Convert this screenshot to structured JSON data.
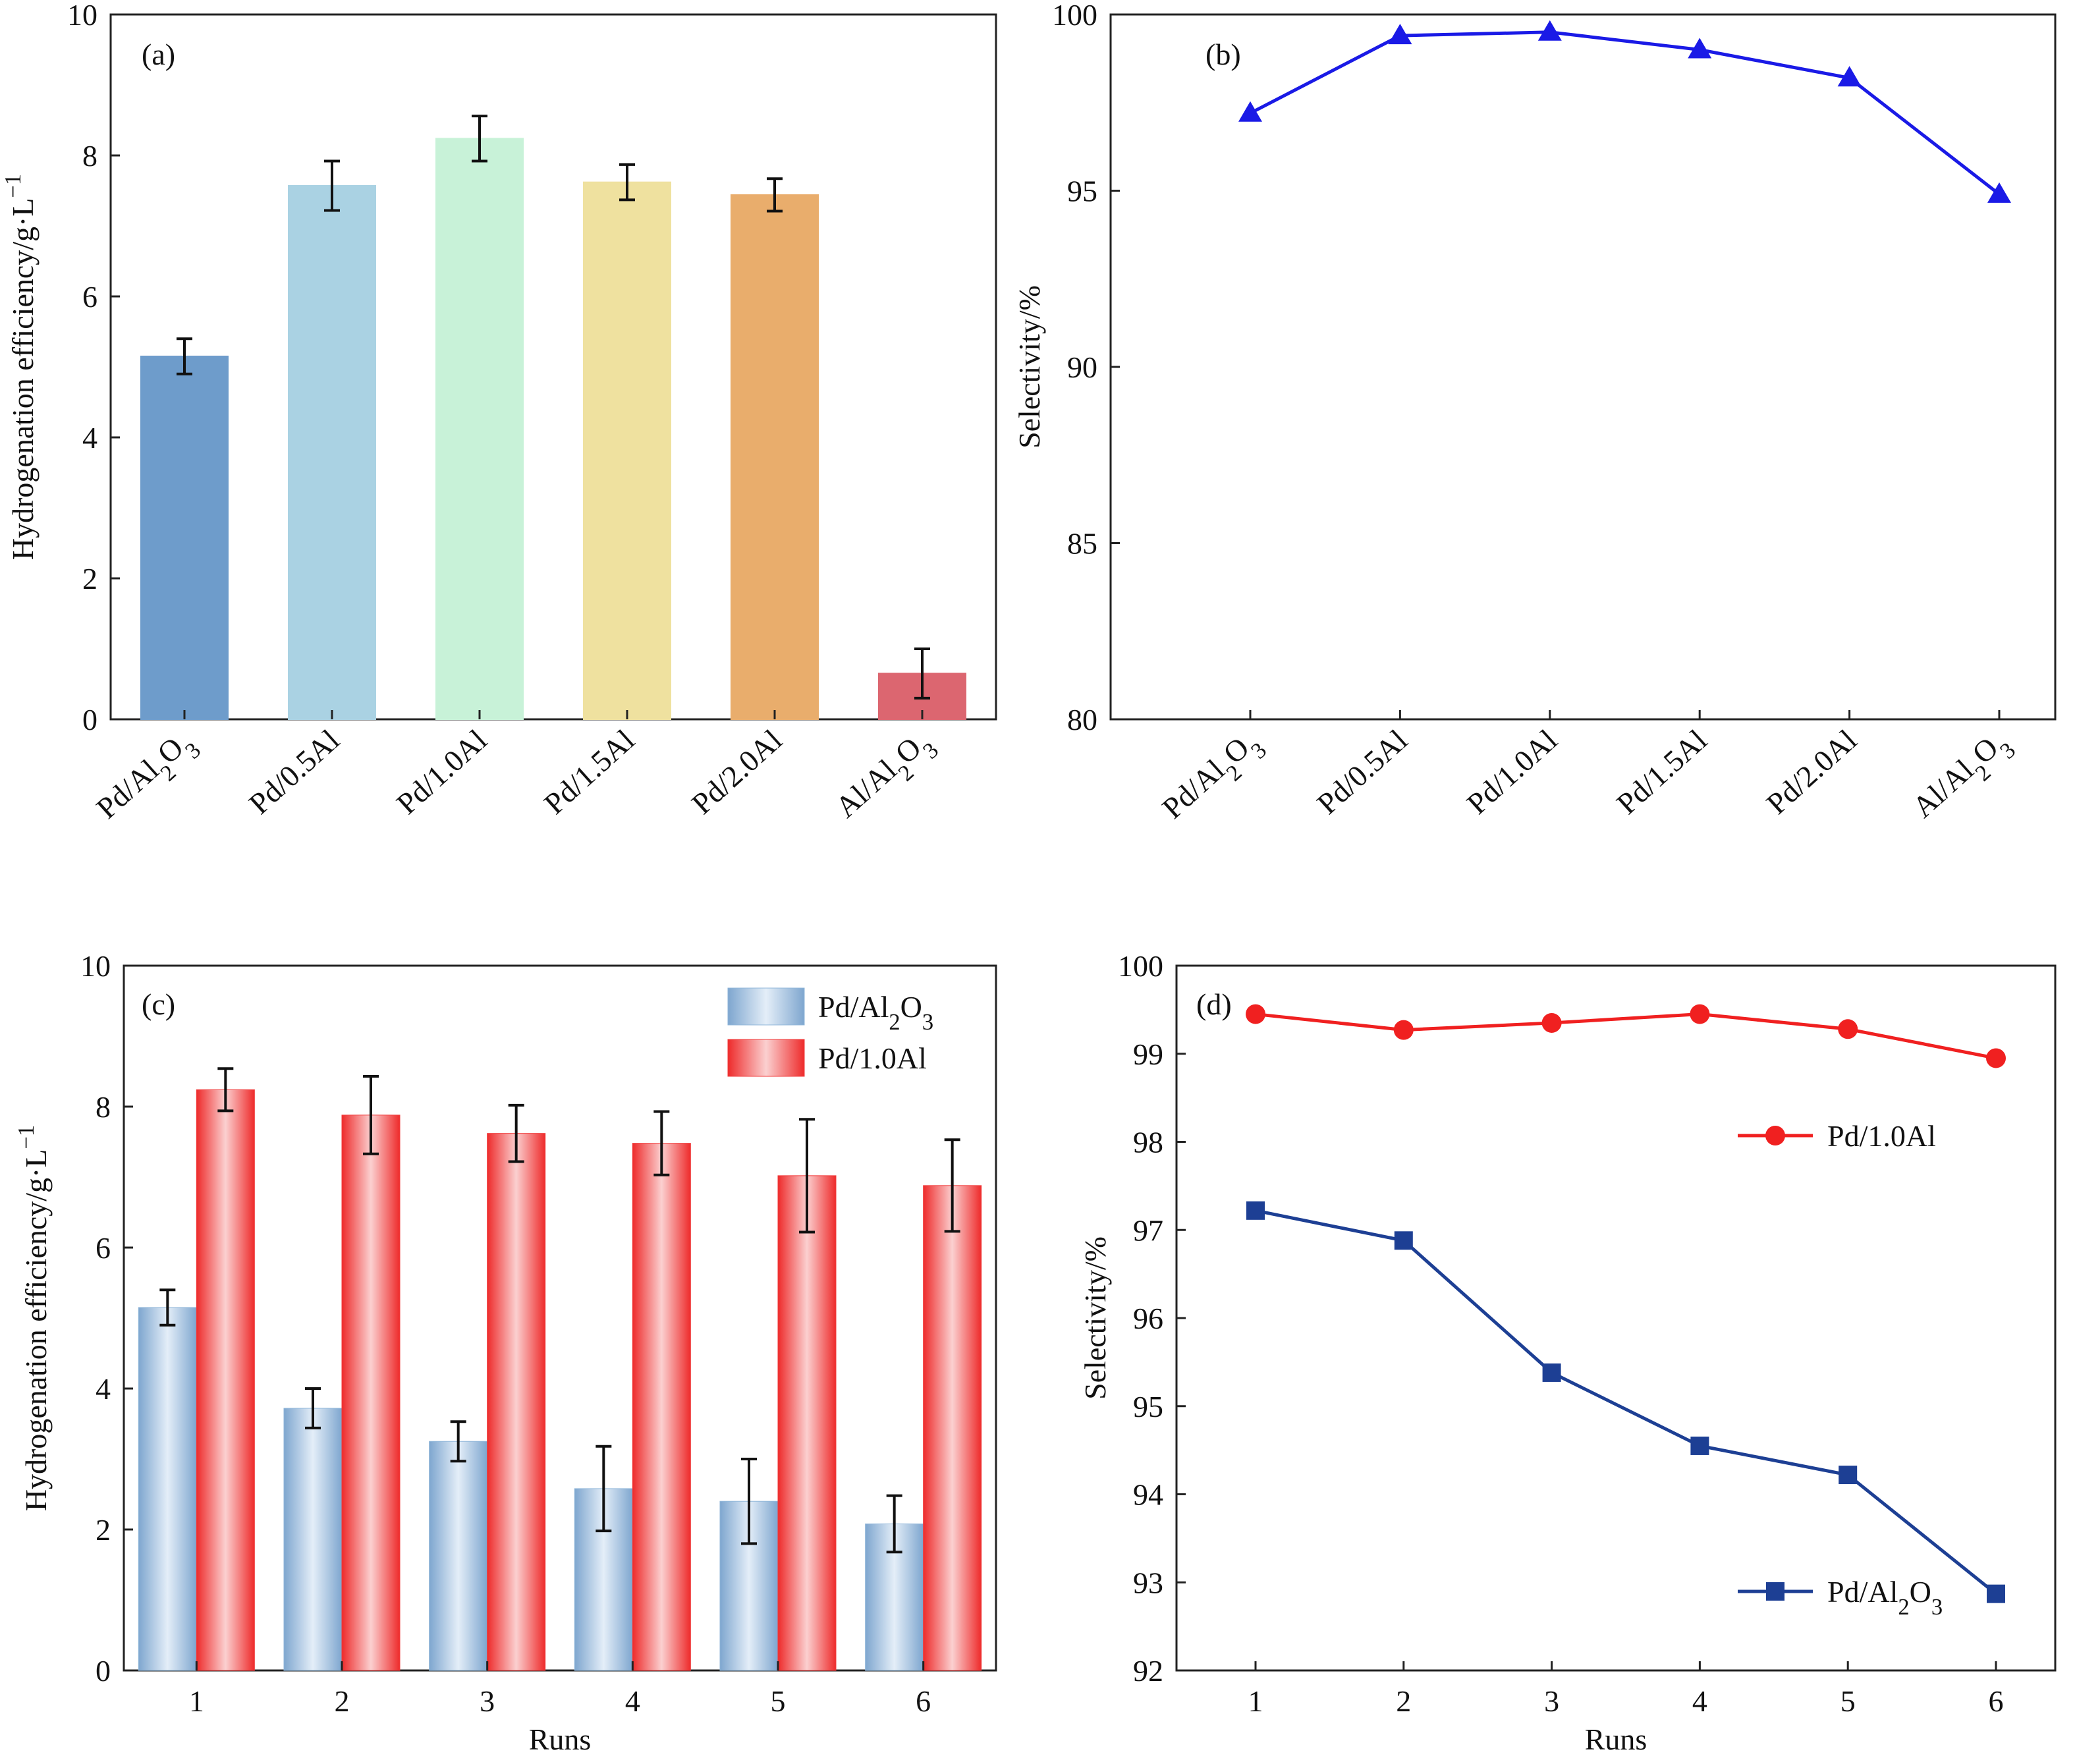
{
  "chart_data": [
    {
      "id": "a",
      "type": "bar",
      "panel_label": "(a)",
      "ylabel": "Hydrogenation efficiency/g·L",
      "ylabel_sup": "−1",
      "xlabel": "",
      "ylim": [
        0,
        10
      ],
      "yticks": [
        0,
        2,
        4,
        6,
        8,
        10
      ],
      "categories": [
        {
          "base": "Pd/Al",
          "sub1": "2",
          "mid": "O",
          "sub2": "3"
        },
        {
          "base": "Pd/0.5Al"
        },
        {
          "base": "Pd/1.0Al"
        },
        {
          "base": "Pd/1.5Al"
        },
        {
          "base": "Pd/2.0Al"
        },
        {
          "base": "Al/Al",
          "sub1": "2",
          "mid": "O",
          "sub2": "3"
        }
      ],
      "values": [
        5.15,
        7.57,
        8.24,
        7.62,
        7.44,
        0.65
      ],
      "errors": [
        0.25,
        0.35,
        0.32,
        0.25,
        0.23,
        0.35
      ],
      "colors": [
        "#6e9ccb",
        "#aad2e3",
        "#c8f2d8",
        "#efe19f",
        "#e9ad6c",
        "#dc6670"
      ]
    },
    {
      "id": "b",
      "type": "line",
      "panel_label": "(b)",
      "ylabel": "Selectivity/%",
      "xlabel": "",
      "ylim": [
        80,
        100
      ],
      "yticks": [
        80,
        85,
        90,
        95,
        100
      ],
      "categories": [
        {
          "base": "Pd/Al",
          "sub1": "2",
          "mid": "O",
          "sub2": "3"
        },
        {
          "base": "Pd/0.5Al"
        },
        {
          "base": "Pd/1.0Al"
        },
        {
          "base": "Pd/1.5Al"
        },
        {
          "base": "Pd/2.0Al"
        },
        {
          "base": "Al/Al",
          "sub1": "2",
          "mid": "O",
          "sub2": "3"
        }
      ],
      "series": [
        {
          "name": "Selectivity",
          "values": [
            97.2,
            99.4,
            99.5,
            99.0,
            98.2,
            94.9
          ],
          "color": "#1a1ae6",
          "marker": "triangle"
        }
      ]
    },
    {
      "id": "c",
      "type": "bar",
      "panel_label": "(c)",
      "ylabel": "Hydrogenation efficiency/g·L",
      "ylabel_sup": "−1",
      "xlabel": "Runs",
      "ylim": [
        0,
        10
      ],
      "yticks": [
        0,
        2,
        4,
        6,
        8,
        10
      ],
      "categories": [
        "1",
        "2",
        "3",
        "4",
        "5",
        "6"
      ],
      "series": [
        {
          "name": {
            "base": "Pd/Al",
            "sub1": "2",
            "mid": "O",
            "sub2": "3"
          },
          "values": [
            5.15,
            3.72,
            3.25,
            2.58,
            2.4,
            2.08
          ],
          "errors": [
            0.25,
            0.28,
            0.28,
            0.6,
            0.6,
            0.4
          ],
          "color": "#8fb6d9"
        },
        {
          "name": {
            "base": "Pd/1.0Al"
          },
          "values": [
            8.24,
            7.88,
            7.62,
            7.48,
            7.02,
            6.88
          ],
          "errors": [
            0.3,
            0.55,
            0.4,
            0.45,
            0.8,
            0.65
          ],
          "color": "#f03a3a"
        }
      ]
    },
    {
      "id": "d",
      "type": "line",
      "panel_label": "(d)",
      "ylabel": "Selectivity/%",
      "xlabel": "Runs",
      "ylim": [
        92,
        100
      ],
      "yticks": [
        92,
        93,
        94,
        95,
        96,
        97,
        98,
        99,
        100
      ],
      "categories": [
        "1",
        "2",
        "3",
        "4",
        "5",
        "6"
      ],
      "series": [
        {
          "name": {
            "base": "Pd/1.0Al"
          },
          "values": [
            99.45,
            99.27,
            99.35,
            99.45,
            99.28,
            98.95
          ],
          "color": "#f02020",
          "marker": "circle"
        },
        {
          "name": {
            "base": "Pd/Al",
            "sub1": "2",
            "mid": "O",
            "sub2": "3"
          },
          "values": [
            97.22,
            96.88,
            95.38,
            94.55,
            94.22,
            92.87
          ],
          "color": "#1d3f94",
          "marker": "square"
        }
      ]
    }
  ]
}
